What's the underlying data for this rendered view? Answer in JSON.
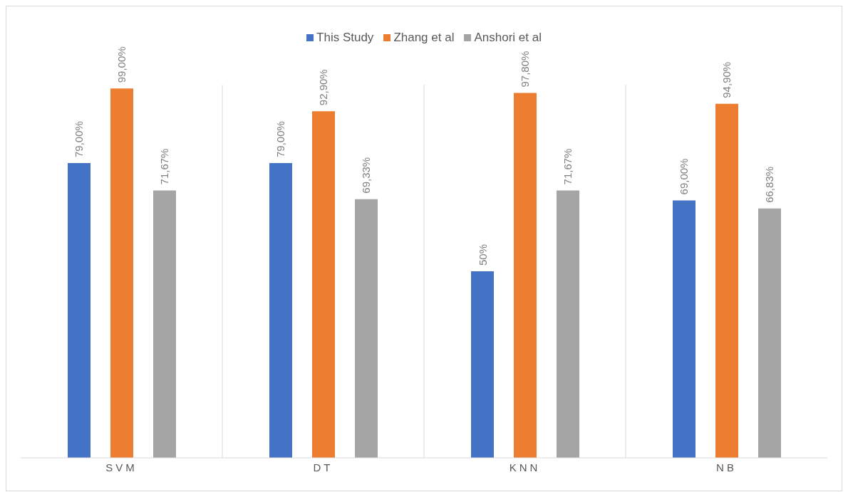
{
  "chart_data": {
    "type": "bar",
    "categories": [
      "SVM",
      "DT",
      "KNN",
      "NB"
    ],
    "series": [
      {
        "name": "This Study",
        "color": "#4472c4",
        "values": [
          79,
          79,
          50,
          69
        ],
        "value_labels": [
          "79,00%",
          "79,00%",
          "50%",
          "69,00%"
        ]
      },
      {
        "name": "Zhang et al",
        "color": "#ed7d31",
        "values": [
          99,
          92.9,
          97.8,
          94.9
        ],
        "value_labels": [
          "99,00%",
          "92,90%",
          "97,80%",
          "94,90%"
        ]
      },
      {
        "name": "Anshori et al",
        "color": "#a5a5a5",
        "values": [
          71.67,
          69.33,
          71.67,
          66.83
        ],
        "value_labels": [
          "71,67%",
          "69,33%",
          "71,67%",
          "66,83%"
        ]
      }
    ],
    "grid": "x",
    "legend": "top"
  }
}
